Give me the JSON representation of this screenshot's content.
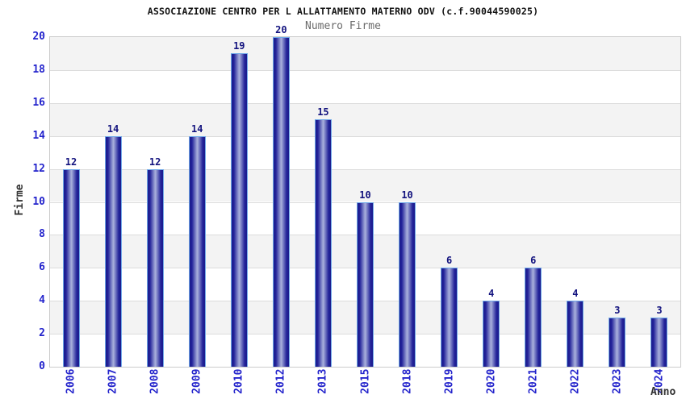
{
  "chart_data": {
    "type": "bar",
    "title": "ASSOCIAZIONE CENTRO PER L ALLATTAMENTO MATERNO ODV (c.f.90044590025)",
    "subtitle": "Numero Firme",
    "xlabel": "Anno",
    "ylabel": "Firme",
    "categories": [
      "2006",
      "2007",
      "2008",
      "2009",
      "2010",
      "2012",
      "2013",
      "2015",
      "2018",
      "2019",
      "2020",
      "2021",
      "2022",
      "2023",
      "2024"
    ],
    "values": [
      12,
      14,
      12,
      14,
      19,
      20,
      15,
      10,
      10,
      6,
      4,
      6,
      4,
      3,
      3
    ],
    "ylim": [
      0,
      20
    ],
    "yticks": [
      0,
      2,
      4,
      6,
      8,
      10,
      12,
      14,
      16,
      18,
      20
    ],
    "grid": "horizontal alternating bands every 2 units",
    "legend": "none",
    "colors": {
      "bar_edge": "#1a1a8c",
      "bar_mid": "#23239a",
      "bar_center": "#aab2dd",
      "bar_border": "#6fa8e8",
      "tick_label": "#2424cc",
      "value_label": "#12127e",
      "band_gray": "#f3f3f3",
      "gridline": "#dcdcdc",
      "title_color": "#111111",
      "subtitle_color": "#6b6b6b",
      "axis_title_color": "#333333"
    }
  }
}
